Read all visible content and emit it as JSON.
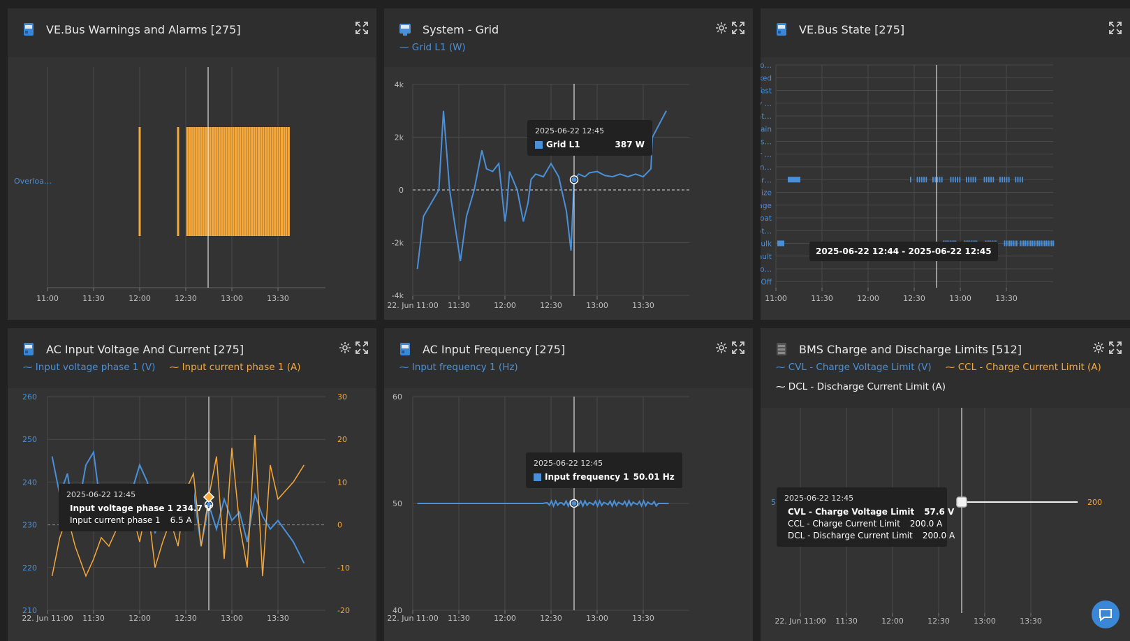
{
  "colors": {
    "blue": "#4a90d9",
    "orange": "#f5a83b",
    "white": "#f2f2f2",
    "grid": "#4a4a4a",
    "text": "#bfbfbf"
  },
  "icons": {
    "device": "device-icon",
    "settings": "gear-icon",
    "expand": "expand-icon",
    "chat": "chat-icon"
  },
  "p1": {
    "title": "VE.Bus Warnings and Alarms [275]",
    "ylabel": "Overloa…",
    "xticks": [
      "11:00",
      "11:30",
      "12:00",
      "12:30",
      "13:00",
      "13:30"
    ]
  },
  "p2": {
    "title": "System - Grid",
    "legend": "Grid L1 (W)",
    "yticks": [
      "4k",
      "2k",
      "0",
      "-2k",
      "-4k"
    ],
    "xticks": [
      "22. Jun 11:00",
      "11:30",
      "12:00",
      "12:30",
      "13:00",
      "13:30"
    ],
    "tooltip": {
      "date": "2025-06-22 12:45",
      "label": "Grid L1",
      "value": "387 W"
    }
  },
  "p3": {
    "title": "VE.Bus State [275]",
    "states": [
      "Ext. co…",
      "Blocked",
      "Test",
      "Battery …",
      "Repeat…",
      "Sustain",
      "Power s…",
      "Power …",
      "Invertin…",
      "Passthr…",
      "Equalize",
      "Storage",
      "Float",
      "Absorpt…",
      "Bulk",
      "Fault",
      "AES mo…",
      "Off"
    ],
    "xticks": [
      "11:00",
      "11:30",
      "12:00",
      "12:30",
      "13:00",
      "13:30"
    ],
    "tooltip": "2025-06-22 12:44 - 2025-06-22 12:45"
  },
  "p4": {
    "title": "AC Input Voltage And Current [275]",
    "legend1": "Input voltage phase 1 (V)",
    "legend2": "Input current phase 1 (A)",
    "yleft": [
      "260",
      "250",
      "240",
      "230",
      "220",
      "210"
    ],
    "yright": [
      "30",
      "20",
      "10",
      "0",
      "-10",
      "-20"
    ],
    "xticks": [
      "22. Jun 11:00",
      "11:30",
      "12:00",
      "12:30",
      "13:00",
      "13:30"
    ],
    "tooltip": {
      "date": "2025-06-22 12:45",
      "r1": "Input voltage phase 1",
      "v1": "234.7 V",
      "r2": "Input current phase 1",
      "v2": "6.5 A"
    }
  },
  "p5": {
    "title": "AC Input Frequency [275]",
    "legend": "Input frequency 1 (Hz)",
    "yticks": [
      "60",
      "50",
      "40"
    ],
    "xticks": [
      "22. Jun 11:00",
      "11:30",
      "12:00",
      "12:30",
      "13:00",
      "13:30"
    ],
    "tooltip": {
      "date": "2025-06-22 12:45",
      "label": "Input frequency 1",
      "value": "50.01 Hz"
    }
  },
  "p6": {
    "title": "BMS Charge and Discharge Limits [512]",
    "legend1": "CVL - Charge Voltage Limit (V)",
    "legend2": "CCL - Charge Current Limit (A)",
    "legend3": "DCL - Discharge Current Limit (A)",
    "yleft": "5",
    "yright": "200",
    "xticks": [
      "22. Jun 11:00",
      "11:30",
      "12:00",
      "12:30",
      "13:00",
      "13:30"
    ],
    "tooltip": {
      "date": "2025-06-22 12:45",
      "r1": "CVL - Charge Voltage Limit",
      "v1": "57.6 V",
      "r2": "CCL - Charge Current Limit",
      "v2": "200.0 A",
      "r3": "DCL - Discharge Current Limit",
      "v3": "200.0 A"
    }
  },
  "chart_data": [
    {
      "type": "bar",
      "title": "VE.Bus Warnings and Alarms [275]",
      "categories": [
        "Overloa…"
      ],
      "x_range": [
        "11:00",
        "13:55"
      ],
      "x": [
        "12:00",
        "12:25",
        "12:31",
        "12:34",
        "12:37",
        "12:40",
        "12:43",
        "12:46",
        "12:49",
        "12:52",
        "12:55",
        "12:58",
        "13:01",
        "13:04",
        "13:07",
        "13:10",
        "13:13",
        "13:16",
        "13:19",
        "13:22",
        "13:25",
        "13:28",
        "13:31",
        "13:34",
        "13:37"
      ]
    },
    {
      "type": "line",
      "title": "System - Grid",
      "series": [
        {
          "name": "Grid L1 (W)",
          "x": [
            "11:03",
            "11:07",
            "11:12",
            "11:17",
            "11:20",
            "11:24",
            "11:31",
            "11:35",
            "11:40",
            "11:45",
            "11:48",
            "11:52",
            "11:56",
            "12:00",
            "12:01",
            "12:03",
            "12:08",
            "12:12",
            "12:15",
            "12:17",
            "12:20",
            "12:25",
            "12:30",
            "12:35",
            "12:40",
            "12:43",
            "12:45",
            "12:48",
            "12:52",
            "12:55",
            "13:00",
            "13:05",
            "13:10",
            "13:15",
            "13:20",
            "13:25",
            "13:30",
            "13:35",
            "13:36",
            "13:45"
          ],
          "y": [
            -3000,
            -1000,
            -500,
            0,
            3000,
            0,
            -2700,
            -1000,
            0,
            1500,
            800,
            700,
            1000,
            -1200,
            -800,
            700,
            0,
            -1200,
            -500,
            400,
            600,
            500,
            1000,
            500,
            -800,
            -2300,
            387,
            600,
            500,
            650,
            700,
            550,
            500,
            600,
            500,
            600,
            500,
            800,
            2000,
            3000
          ]
        }
      ],
      "ylim": [
        -4000,
        4000
      ]
    },
    {
      "type": "heatmap",
      "title": "VE.Bus State [275]",
      "categories": [
        "Passthr…",
        "Bulk"
      ],
      "x_range": [
        "11:00",
        "14:00"
      ]
    },
    {
      "type": "line",
      "title": "AC Input Voltage And Current [275]",
      "series": [
        {
          "name": "Input voltage phase 1 (V)",
          "x": [
            "11:03",
            "11:08",
            "11:13",
            "11:18",
            "11:25",
            "11:30",
            "11:35",
            "11:40",
            "11:45",
            "11:50",
            "11:55",
            "12:00",
            "12:05",
            "12:10",
            "12:15",
            "12:20",
            "12:25",
            "12:30",
            "12:35",
            "12:40",
            "12:45",
            "12:50",
            "12:55",
            "13:00",
            "13:05",
            "13:10",
            "13:15",
            "13:20",
            "13:25",
            "13:30",
            "13:40",
            "13:47"
          ],
          "y": [
            246,
            237,
            242,
            230,
            244,
            247,
            233,
            238,
            236,
            231,
            238,
            244,
            240,
            228,
            235,
            232,
            231,
            236,
            238,
            225,
            234.7,
            229,
            236,
            231,
            233,
            226,
            237,
            232,
            229,
            231,
            226,
            221
          ]
        },
        {
          "name": "Input current phase 1 (A)",
          "x": [
            "11:03",
            "11:08",
            "11:13",
            "11:18",
            "11:25",
            "11:30",
            "11:35",
            "11:40",
            "11:45",
            "11:50",
            "11:55",
            "12:00",
            "12:05",
            "12:10",
            "12:15",
            "12:20",
            "12:25",
            "12:30",
            "12:35",
            "12:40",
            "12:45",
            "12:50",
            "12:55",
            "13:00",
            "13:05",
            "13:10",
            "13:15",
            "13:20",
            "13:25",
            "13:30",
            "13:40",
            "13:47"
          ],
          "y": [
            -12,
            -3,
            2,
            -5,
            -12,
            -8,
            -3,
            -5,
            -1,
            1,
            3,
            -4,
            5,
            -10,
            -4,
            1,
            -5,
            8,
            12,
            -5,
            6.5,
            16,
            -8,
            18,
            0,
            -10,
            21,
            -12,
            14,
            6,
            10,
            14
          ]
        }
      ],
      "ylim_left": [
        210,
        260
      ],
      "ylim_right": [
        -20,
        30
      ]
    },
    {
      "type": "line",
      "title": "AC Input Frequency [275]",
      "series": [
        {
          "name": "Input frequency 1 (Hz)",
          "x": [
            "11:03",
            "12:00",
            "12:45",
            "13:48"
          ],
          "y": [
            50,
            50,
            50.01,
            50
          ]
        }
      ],
      "ylim": [
        40,
        60
      ]
    },
    {
      "type": "line",
      "title": "BMS Charge and Discharge Limits [512]",
      "series": [
        {
          "name": "CVL - Charge Voltage Limit (V)",
          "x": [
            "12:45",
            "13:50"
          ],
          "y": [
            57.6,
            57.6
          ]
        },
        {
          "name": "CCL - Charge Current Limit (A)",
          "x": [
            "12:45",
            "13:50"
          ],
          "y": [
            200,
            200
          ]
        },
        {
          "name": "DCL - Discharge Current Limit (A)",
          "x": [
            "12:45",
            "13:50"
          ],
          "y": [
            200,
            200
          ]
        }
      ]
    }
  ]
}
